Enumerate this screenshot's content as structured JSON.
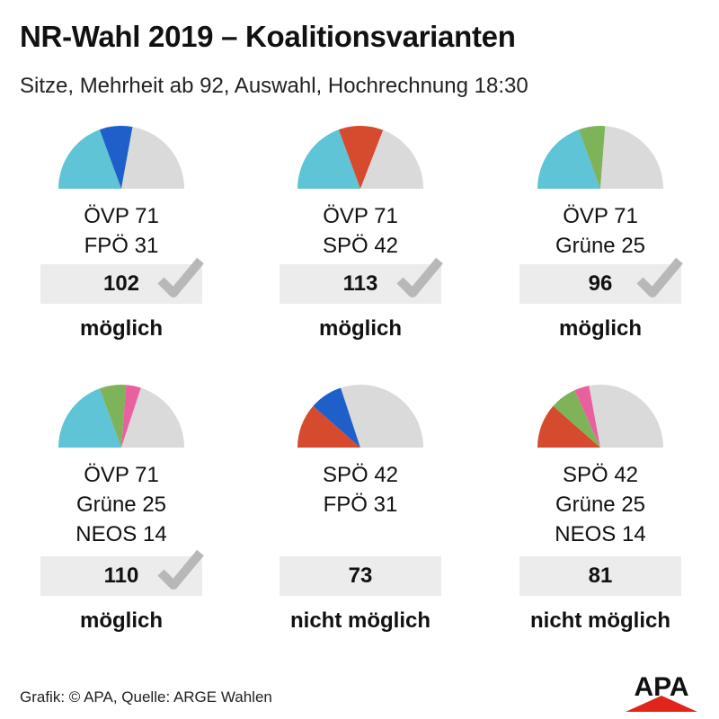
{
  "title": "NR-Wahl 2019 – Koalitionsvarianten",
  "subtitle": "Sitze, Mehrheit ab 92, Auswahl, Hochrechnung 18:30",
  "footer": "Grafik: © APA, Quelle: ARGE Wahlen",
  "logo_text": "APA",
  "colors": {
    "ÖVP": "#5ec4d6",
    "FPÖ": "#1f5fc9",
    "SPÖ": "#d64a2e",
    "Grüne": "#7fb35a",
    "NEOS": "#e8609e",
    "rest": "#dadada",
    "check": "#b8b8b8",
    "logo": "#e1251b"
  },
  "chart_data": {
    "type": "semicircle-pie",
    "total_seats": 183,
    "majority": 92,
    "coalitions": [
      {
        "parties": [
          {
            "name": "ÖVP",
            "seats": 71
          },
          {
            "name": "FPÖ",
            "seats": 31
          }
        ],
        "lines": [
          "ÖVP 71",
          "FPÖ 31"
        ],
        "sum": "102",
        "majority_reached": true,
        "status": "möglich"
      },
      {
        "parties": [
          {
            "name": "ÖVP",
            "seats": 71
          },
          {
            "name": "SPÖ",
            "seats": 42
          }
        ],
        "lines": [
          "ÖVP 71",
          "SPÖ 42"
        ],
        "sum": "113",
        "majority_reached": true,
        "status": "möglich"
      },
      {
        "parties": [
          {
            "name": "ÖVP",
            "seats": 71
          },
          {
            "name": "Grüne",
            "seats": 25
          }
        ],
        "lines": [
          "ÖVP 71",
          "Grüne 25"
        ],
        "sum": "96",
        "majority_reached": true,
        "status": "möglich"
      },
      {
        "parties": [
          {
            "name": "ÖVP",
            "seats": 71
          },
          {
            "name": "Grüne",
            "seats": 25
          },
          {
            "name": "NEOS",
            "seats": 14
          }
        ],
        "lines": [
          "ÖVP 71",
          "Grüne 25",
          "NEOS 14"
        ],
        "sum": "110",
        "majority_reached": true,
        "status": "möglich"
      },
      {
        "parties": [
          {
            "name": "SPÖ",
            "seats": 42
          },
          {
            "name": "FPÖ",
            "seats": 31
          }
        ],
        "lines": [
          "SPÖ 42",
          "FPÖ 31"
        ],
        "sum": "73",
        "majority_reached": false,
        "status": "nicht möglich"
      },
      {
        "parties": [
          {
            "name": "SPÖ",
            "seats": 42
          },
          {
            "name": "Grüne",
            "seats": 25
          },
          {
            "name": "NEOS",
            "seats": 14
          }
        ],
        "lines": [
          "SPÖ 42",
          "Grüne 25",
          "NEOS 14"
        ],
        "sum": "81",
        "majority_reached": false,
        "status": "nicht möglich"
      }
    ]
  }
}
